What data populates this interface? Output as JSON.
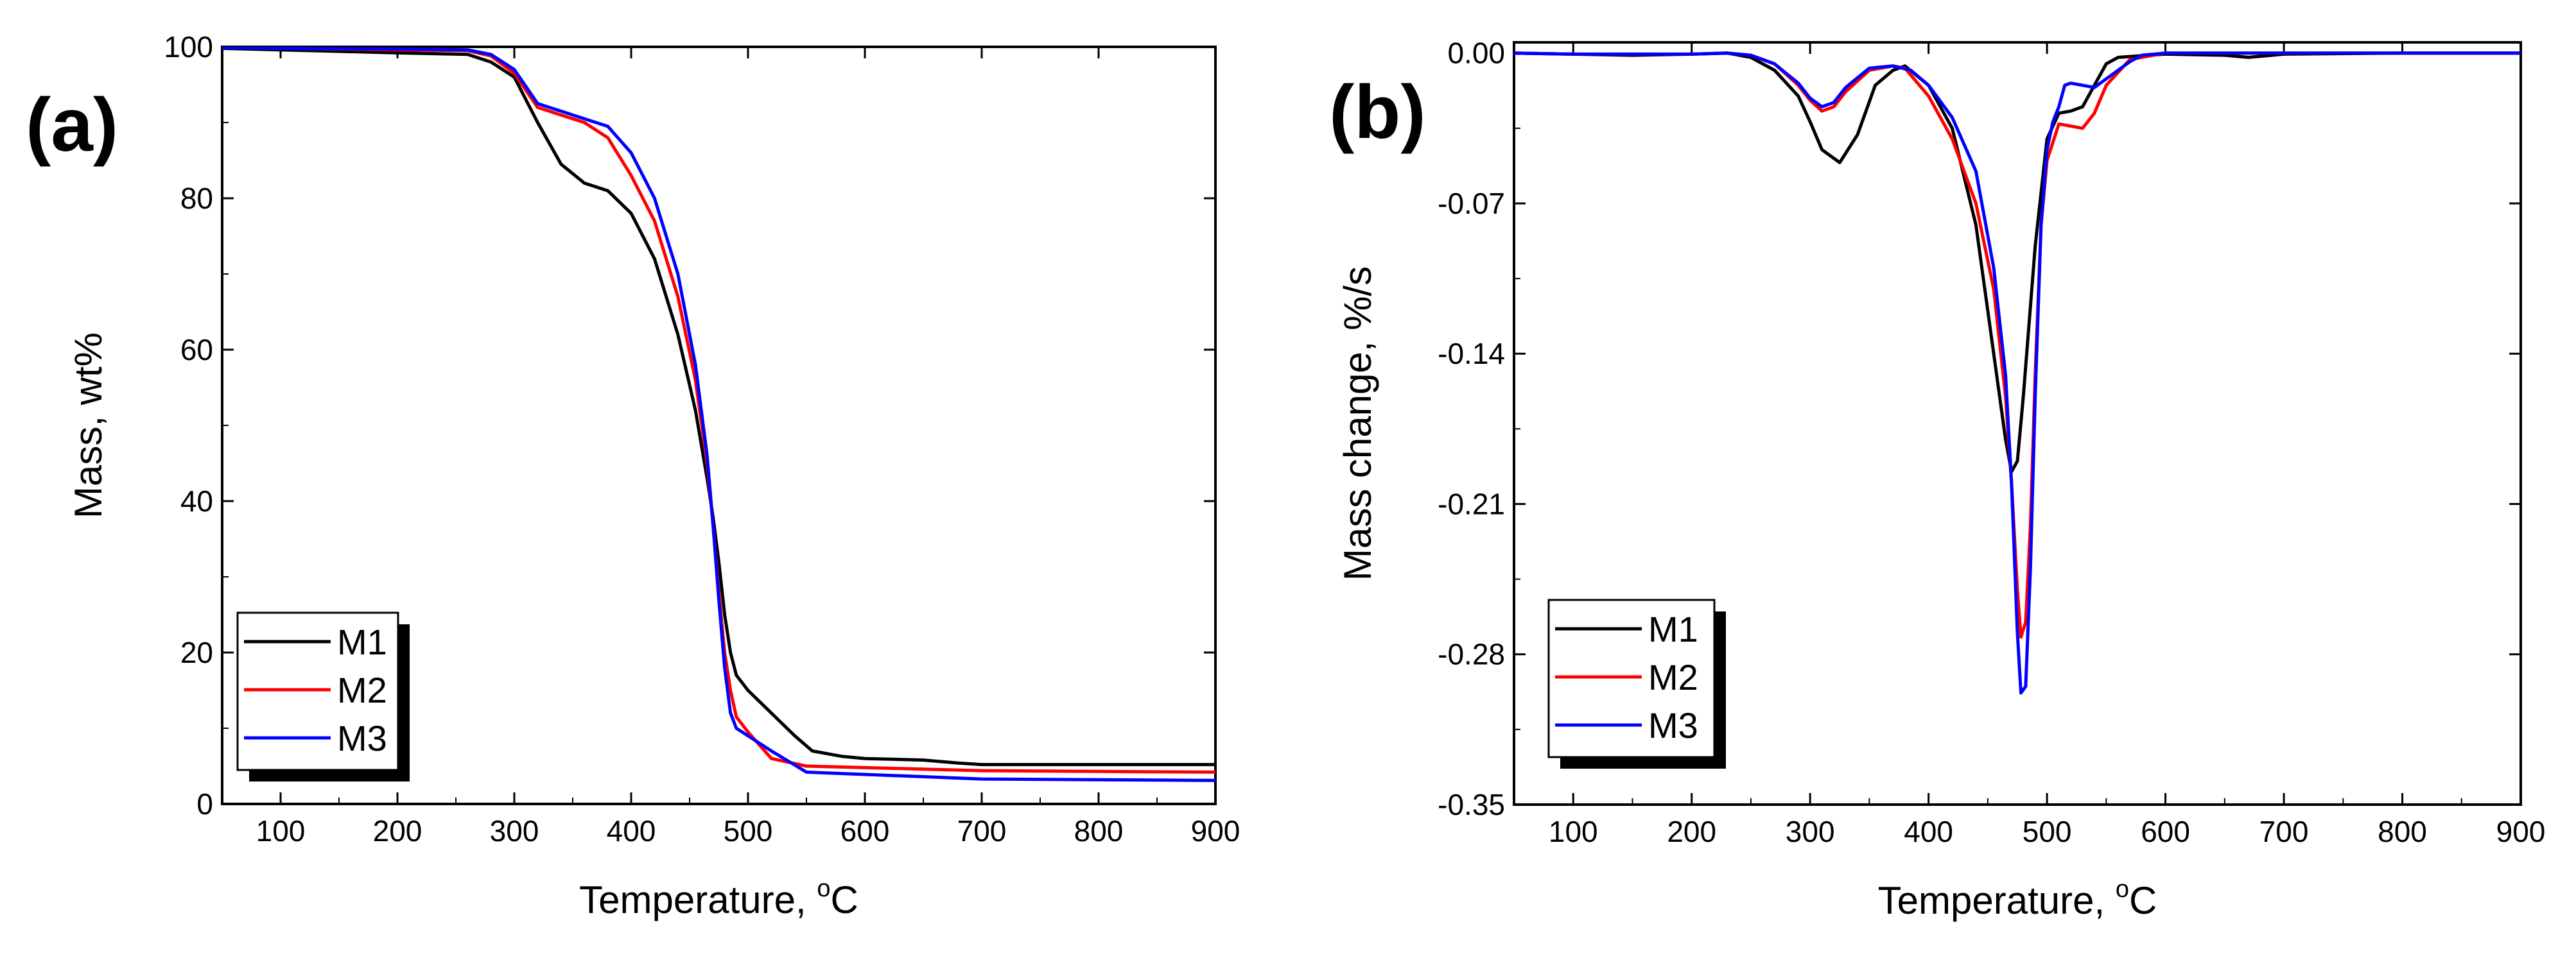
{
  "chart_data": [
    {
      "type": "line",
      "panel_label": "(a)",
      "xlabel": "Temperature, ",
      "xunit_sup": "o",
      "xunit_tail": "C",
      "ylabel": "Mass, wt%",
      "xlim": [
        50,
        900
      ],
      "ylim": [
        0,
        100
      ],
      "xticks": [
        "100",
        "200",
        "300",
        "400",
        "500",
        "600",
        "700",
        "800",
        "900"
      ],
      "yticks": [
        "0",
        "20",
        "40",
        "60",
        "80",
        "100"
      ],
      "legend_position": "bottom-left",
      "series": [
        {
          "name": "M1",
          "color": "#000000",
          "x": [
            50,
            100,
            200,
            260,
            280,
            300,
            320,
            340,
            360,
            380,
            400,
            420,
            440,
            455,
            465,
            470,
            475,
            480,
            485,
            490,
            500,
            520,
            540,
            555,
            580,
            600,
            650,
            680,
            700,
            800,
            900
          ],
          "y": [
            99.8,
            99.6,
            99.2,
            99.0,
            98.0,
            96.0,
            90.0,
            84.5,
            82.0,
            81.0,
            78.0,
            72.0,
            62.0,
            52.0,
            43.0,
            38.0,
            32.0,
            25.0,
            20.0,
            17.0,
            15.0,
            12.0,
            9.0,
            7.0,
            6.3,
            6.0,
            5.8,
            5.4,
            5.2,
            5.2,
            5.2
          ]
        },
        {
          "name": "M2",
          "color": "#ff0000",
          "x": [
            50,
            100,
            200,
            260,
            280,
            300,
            320,
            340,
            360,
            380,
            400,
            420,
            440,
            455,
            465,
            470,
            475,
            480,
            485,
            490,
            500,
            520,
            550,
            600,
            650,
            700,
            800,
            900
          ],
          "y": [
            99.9,
            99.8,
            99.6,
            99.5,
            98.8,
            96.5,
            92.0,
            91.0,
            90.0,
            88.0,
            83.0,
            77.0,
            67.0,
            56.0,
            45.0,
            37.0,
            28.0,
            20.0,
            15.0,
            11.5,
            9.5,
            6.0,
            5.0,
            4.8,
            4.6,
            4.4,
            4.3,
            4.2
          ]
        },
        {
          "name": "M3",
          "color": "#0000ff",
          "x": [
            50,
            100,
            200,
            260,
            280,
            300,
            320,
            340,
            360,
            380,
            400,
            420,
            440,
            455,
            465,
            470,
            475,
            480,
            485,
            490,
            500,
            520,
            550,
            600,
            650,
            700,
            800,
            900
          ],
          "y": [
            99.9,
            99.8,
            99.7,
            99.6,
            99.0,
            97.0,
            92.5,
            91.5,
            90.5,
            89.5,
            86.0,
            80.0,
            70.0,
            58.0,
            46.0,
            37.0,
            27.0,
            18.0,
            12.0,
            10.0,
            9.0,
            7.0,
            4.2,
            3.9,
            3.6,
            3.3,
            3.2,
            3.1
          ]
        }
      ]
    },
    {
      "type": "line",
      "panel_label": "(b)",
      "xlabel": "Temperature, ",
      "xunit_sup": "o",
      "xunit_tail": "C",
      "ylabel": "Mass change, %/s",
      "xlim": [
        50,
        900
      ],
      "ylim": [
        -0.35,
        0.005
      ],
      "xticks": [
        "100",
        "200",
        "300",
        "400",
        "500",
        "600",
        "700",
        "800",
        "900"
      ],
      "yticks": [
        "0.00",
        "-0.07",
        "-0.14",
        "-0.21",
        "-0.28",
        "-0.35"
      ],
      "legend_position": "bottom-left",
      "series": [
        {
          "name": "M1",
          "color": "#000000",
          "x": [
            50,
            100,
            150,
            200,
            230,
            250,
            270,
            290,
            300,
            310,
            325,
            340,
            355,
            370,
            380,
            400,
            420,
            440,
            455,
            465,
            470,
            475,
            480,
            490,
            500,
            510,
            520,
            530,
            540,
            550,
            560,
            600,
            650,
            670,
            690,
            700,
            800,
            900
          ],
          "y": [
            0.0,
            -0.0005,
            -0.001,
            -0.0005,
            0.0,
            -0.002,
            -0.008,
            -0.02,
            -0.032,
            -0.045,
            -0.051,
            -0.038,
            -0.015,
            -0.008,
            -0.006,
            -0.015,
            -0.035,
            -0.08,
            -0.14,
            -0.18,
            -0.195,
            -0.19,
            -0.16,
            -0.09,
            -0.04,
            -0.028,
            -0.027,
            -0.025,
            -0.015,
            -0.005,
            -0.002,
            -0.0005,
            -0.001,
            -0.002,
            -0.001,
            -0.0005,
            0.0,
            0.0
          ]
        },
        {
          "name": "M2",
          "color": "#ff0000",
          "x": [
            50,
            100,
            150,
            200,
            230,
            250,
            270,
            290,
            300,
            310,
            320,
            330,
            350,
            370,
            380,
            400,
            420,
            440,
            455,
            465,
            470,
            475,
            478,
            482,
            486,
            490,
            495,
            500,
            510,
            520,
            530,
            540,
            550,
            570,
            600,
            700,
            800,
            900
          ],
          "y": [
            0.0,
            -0.0005,
            -0.0005,
            -0.0005,
            0.0,
            -0.001,
            -0.005,
            -0.015,
            -0.022,
            -0.027,
            -0.025,
            -0.018,
            -0.008,
            -0.006,
            -0.007,
            -0.02,
            -0.04,
            -0.07,
            -0.11,
            -0.16,
            -0.2,
            -0.25,
            -0.272,
            -0.265,
            -0.22,
            -0.15,
            -0.08,
            -0.05,
            -0.033,
            -0.034,
            -0.035,
            -0.028,
            -0.015,
            -0.003,
            0.0,
            0.0,
            0.0,
            0.0
          ]
        },
        {
          "name": "M3",
          "color": "#0000ff",
          "x": [
            50,
            100,
            150,
            200,
            230,
            250,
            270,
            290,
            300,
            310,
            320,
            330,
            350,
            370,
            385,
            400,
            420,
            440,
            455,
            465,
            470,
            475,
            478,
            482,
            486,
            490,
            495,
            500,
            505,
            510,
            515,
            520,
            530,
            540,
            550,
            560,
            570,
            580,
            600,
            700,
            800,
            900
          ],
          "y": [
            0.0,
            -0.0005,
            -0.0005,
            -0.0005,
            0.0,
            -0.001,
            -0.005,
            -0.014,
            -0.021,
            -0.025,
            -0.023,
            -0.016,
            -0.007,
            -0.006,
            -0.008,
            -0.015,
            -0.03,
            -0.055,
            -0.1,
            -0.15,
            -0.2,
            -0.27,
            -0.298,
            -0.295,
            -0.24,
            -0.16,
            -0.08,
            -0.045,
            -0.032,
            -0.025,
            -0.015,
            -0.014,
            -0.015,
            -0.016,
            -0.012,
            -0.008,
            -0.004,
            -0.001,
            0.0,
            0.0,
            0.0,
            0.0
          ]
        }
      ]
    }
  ]
}
